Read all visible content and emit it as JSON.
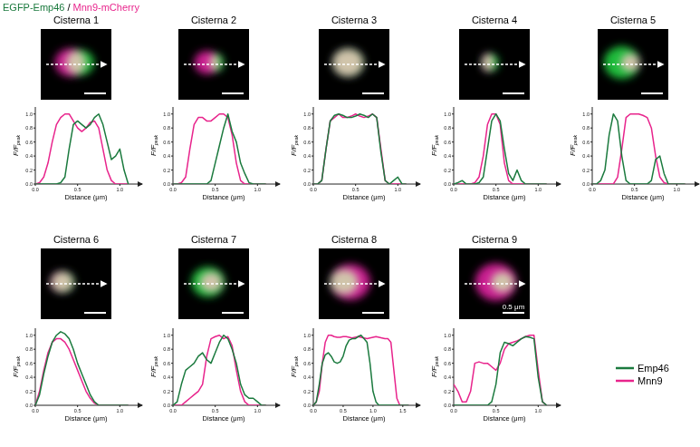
{
  "header": {
    "green": "EGFP-Emp46",
    "separator": "/",
    "magenta": "Mnn9-mCherry"
  },
  "chart_data": [
    {
      "type": "line",
      "title": "Cisterna 1",
      "xlabel": "Distance (μm)",
      "ylabel": "F/F",
      "ylabel_subscript": "peak",
      "x": [
        0,
        0.05,
        0.1,
        0.15,
        0.2,
        0.25,
        0.3,
        0.35,
        0.4,
        0.45,
        0.5,
        0.55,
        0.6,
        0.65,
        0.7,
        0.75,
        0.8,
        0.85,
        0.9,
        0.95,
        1,
        1.05,
        1.1
      ],
      "series": [
        {
          "name": "Emp46",
          "color": "#1b7a3e",
          "values": [
            0,
            0,
            0,
            0,
            0,
            0,
            0.02,
            0.1,
            0.5,
            0.85,
            0.9,
            0.85,
            0.8,
            0.85,
            0.95,
            1,
            0.85,
            0.6,
            0.35,
            0.4,
            0.5,
            0.2,
            0
          ]
        },
        {
          "name": "Mnn9",
          "color": "#e8248c",
          "values": [
            0,
            0.02,
            0.1,
            0.3,
            0.6,
            0.85,
            0.95,
            1,
            1,
            0.9,
            0.8,
            0.75,
            0.8,
            0.88,
            0.9,
            0.8,
            0.5,
            0.2,
            0.05,
            0,
            0,
            0,
            0
          ]
        }
      ],
      "xlim": [
        0,
        1.2
      ],
      "xticks": [
        {
          "value": 0,
          "label": "0.0"
        },
        0.5,
        {
          "value": 1,
          "label": "1.0"
        }
      ],
      "ylim": [
        0,
        1.1
      ],
      "yticks": [
        {
          "value": 0,
          "label": "0.0"
        },
        0.2,
        0.4,
        0.6,
        0.8,
        {
          "value": 1,
          "label": "1.0"
        }
      ]
    },
    {
      "type": "line",
      "title": "Cisterna 2",
      "xlabel": "Distance (μm)",
      "ylabel": "F/F",
      "ylabel_subscript": "peak",
      "x": [
        0,
        0.05,
        0.1,
        0.15,
        0.2,
        0.25,
        0.3,
        0.35,
        0.4,
        0.45,
        0.5,
        0.55,
        0.6,
        0.65,
        0.7,
        0.75,
        0.8,
        0.85,
        0.9,
        0.95,
        1,
        1.05,
        1.1
      ],
      "series": [
        {
          "name": "Emp46",
          "color": "#1b7a3e",
          "values": [
            0,
            0,
            0,
            0,
            0,
            0,
            0,
            0,
            0,
            0.05,
            0.3,
            0.55,
            0.8,
            1,
            0.75,
            0.6,
            0.3,
            0.15,
            0.02,
            0,
            0,
            0,
            0
          ]
        },
        {
          "name": "Mnn9",
          "color": "#e8248c",
          "values": [
            0,
            0,
            0.02,
            0.1,
            0.5,
            0.85,
            0.95,
            0.95,
            0.9,
            0.9,
            0.95,
            1,
            1,
            0.95,
            0.7,
            0.3,
            0.05,
            0,
            0,
            0,
            0,
            0,
            0
          ]
        }
      ],
      "xlim": [
        0,
        1.2
      ],
      "xticks": [
        {
          "value": 0,
          "label": "0.0"
        },
        0.5,
        {
          "value": 1,
          "label": "1.0"
        }
      ],
      "ylim": [
        0,
        1.1
      ],
      "yticks": [
        {
          "value": 0,
          "label": "0.0"
        },
        0.2,
        0.4,
        0.6,
        0.8,
        {
          "value": 1,
          "label": "1.0"
        }
      ]
    },
    {
      "type": "line",
      "title": "Cisterna 3",
      "xlabel": "Distance (μm)",
      "ylabel": "F/F",
      "ylabel_subscript": "peak",
      "x": [
        0,
        0.05,
        0.1,
        0.15,
        0.2,
        0.25,
        0.3,
        0.35,
        0.4,
        0.45,
        0.5,
        0.55,
        0.6,
        0.65,
        0.7,
        0.75,
        0.8,
        0.85,
        0.9,
        0.95,
        1,
        1.05,
        1.1
      ],
      "series": [
        {
          "name": "Emp46",
          "color": "#1b7a3e",
          "values": [
            0,
            0,
            0.05,
            0.5,
            0.9,
            0.98,
            1,
            0.98,
            0.95,
            0.95,
            0.97,
            1,
            0.98,
            0.95,
            1,
            0.95,
            0.45,
            0.05,
            0,
            0.05,
            0.1,
            0,
            0
          ]
        },
        {
          "name": "Mnn9",
          "color": "#e8248c",
          "values": [
            0,
            0,
            0.05,
            0.5,
            0.9,
            0.95,
            1,
            0.95,
            0.95,
            0.97,
            1,
            0.97,
            0.95,
            0.97,
            1,
            0.95,
            0.5,
            0.05,
            0,
            0,
            0,
            0,
            0
          ]
        }
      ],
      "xlim": [
        0,
        1.2
      ],
      "xticks": [
        {
          "value": 0,
          "label": "0.0"
        },
        0.5,
        {
          "value": 1,
          "label": "1.0"
        }
      ],
      "ylim": [
        0,
        1.1
      ],
      "yticks": [
        {
          "value": 0,
          "label": "0.0"
        },
        0.2,
        0.4,
        0.6,
        0.8,
        {
          "value": 1,
          "label": "1.0"
        }
      ]
    },
    {
      "type": "line",
      "title": "Cisterna 4",
      "xlabel": "Distance (μm)",
      "ylabel": "F/F",
      "ylabel_subscript": "peak",
      "x": [
        0,
        0.05,
        0.1,
        0.15,
        0.2,
        0.25,
        0.3,
        0.35,
        0.4,
        0.45,
        0.5,
        0.55,
        0.6,
        0.65,
        0.7,
        0.75,
        0.8,
        0.85,
        0.9,
        0.95,
        1,
        1.05,
        1.1
      ],
      "series": [
        {
          "name": "Emp46",
          "color": "#1b7a3e",
          "values": [
            0,
            0.02,
            0.05,
            0,
            0,
            0,
            0.02,
            0.1,
            0.5,
            0.9,
            1,
            0.9,
            0.5,
            0.15,
            0.05,
            0.2,
            0.05,
            0,
            0,
            0,
            0,
            0,
            0
          ]
        },
        {
          "name": "Mnn9",
          "color": "#e8248c",
          "values": [
            0,
            0,
            0,
            0,
            0,
            0.02,
            0.1,
            0.4,
            0.85,
            1,
            1,
            0.85,
            0.3,
            0.05,
            0,
            0,
            0,
            0,
            0,
            0,
            0,
            0,
            0
          ]
        }
      ],
      "xlim": [
        0,
        1.2
      ],
      "xticks": [
        {
          "value": 0,
          "label": "0.0"
        },
        0.5,
        {
          "value": 1,
          "label": "1.0"
        }
      ],
      "ylim": [
        0,
        1.1
      ],
      "yticks": [
        {
          "value": 0,
          "label": "0.0"
        },
        0.2,
        0.4,
        0.6,
        0.8,
        {
          "value": 1,
          "label": "1.0"
        }
      ]
    },
    {
      "type": "line",
      "title": "Cisterna 5",
      "xlabel": "Distance (μm)",
      "ylabel": "F/F",
      "ylabel_subscript": "peak",
      "x": [
        0,
        0.05,
        0.1,
        0.15,
        0.2,
        0.25,
        0.3,
        0.35,
        0.4,
        0.45,
        0.5,
        0.55,
        0.6,
        0.65,
        0.7,
        0.75,
        0.8,
        0.85,
        0.9,
        0.95,
        1,
        1.05,
        1.1
      ],
      "series": [
        {
          "name": "Emp46",
          "color": "#1b7a3e",
          "values": [
            0,
            0,
            0.05,
            0.2,
            0.7,
            1,
            0.9,
            0.4,
            0.05,
            0,
            0,
            0,
            0,
            0,
            0.05,
            0.35,
            0.4,
            0.15,
            0,
            0,
            0,
            0,
            0
          ]
        },
        {
          "name": "Mnn9",
          "color": "#e8248c",
          "values": [
            0,
            0,
            0,
            0,
            0,
            0,
            0.1,
            0.5,
            0.95,
            1,
            1,
            1,
            0.98,
            0.95,
            0.8,
            0.4,
            0.1,
            0.02,
            0,
            0,
            0,
            0,
            0
          ]
        }
      ],
      "xlim": [
        0,
        1.2
      ],
      "xticks": [
        {
          "value": 0,
          "label": "0.0"
        },
        0.5,
        {
          "value": 1,
          "label": "1.0"
        }
      ],
      "ylim": [
        0,
        1.1
      ],
      "yticks": [
        {
          "value": 0,
          "label": "0.0"
        },
        0.2,
        0.4,
        0.6,
        0.8,
        {
          "value": 1,
          "label": "1.0"
        }
      ]
    },
    {
      "type": "line",
      "title": "Cisterna 6",
      "xlabel": "Distance (μm)",
      "ylabel": "F/F",
      "ylabel_subscript": "peak",
      "x": [
        0,
        0.05,
        0.1,
        0.15,
        0.2,
        0.25,
        0.3,
        0.35,
        0.4,
        0.45,
        0.5,
        0.55,
        0.6,
        0.65,
        0.7,
        0.75,
        0.8,
        0.85,
        0.9,
        0.95,
        1,
        1.05,
        1.1
      ],
      "series": [
        {
          "name": "Emp46",
          "color": "#1b7a3e",
          "values": [
            0,
            0.15,
            0.45,
            0.7,
            0.9,
            1,
            1.05,
            1.02,
            0.95,
            0.8,
            0.6,
            0.45,
            0.3,
            0.15,
            0.05,
            0,
            0,
            0,
            0,
            0,
            0,
            0,
            0
          ]
        },
        {
          "name": "Mnn9",
          "color": "#e8248c",
          "values": [
            0,
            0.2,
            0.5,
            0.75,
            0.9,
            0.95,
            0.95,
            0.9,
            0.8,
            0.65,
            0.5,
            0.35,
            0.2,
            0.1,
            0.03,
            0,
            0,
            0,
            0,
            0,
            0,
            0,
            0
          ]
        }
      ],
      "xlim": [
        0,
        1.2
      ],
      "xticks": [
        {
          "value": 0,
          "label": "0.0"
        },
        0.5,
        {
          "value": 1,
          "label": "1.0"
        }
      ],
      "ylim": [
        0,
        1.1
      ],
      "yticks": [
        {
          "value": 0,
          "label": "0.0"
        },
        0.2,
        0.4,
        0.6,
        0.8,
        {
          "value": 1,
          "label": "1.0"
        }
      ]
    },
    {
      "type": "line",
      "title": "Cisterna 7",
      "xlabel": "Distance (μm)",
      "ylabel": "F/F",
      "ylabel_subscript": "peak",
      "x": [
        0,
        0.05,
        0.1,
        0.15,
        0.2,
        0.25,
        0.3,
        0.35,
        0.4,
        0.45,
        0.5,
        0.55,
        0.6,
        0.65,
        0.7,
        0.75,
        0.8,
        0.85,
        0.9,
        0.95,
        1,
        1.05,
        1.1
      ],
      "series": [
        {
          "name": "Emp46",
          "color": "#1b7a3e",
          "values": [
            0,
            0.05,
            0.3,
            0.5,
            0.55,
            0.6,
            0.7,
            0.75,
            0.65,
            0.6,
            0.75,
            0.9,
            1,
            0.95,
            0.8,
            0.6,
            0.3,
            0.15,
            0.1,
            0.1,
            0.05,
            0,
            0
          ]
        },
        {
          "name": "Mnn9",
          "color": "#e8248c",
          "values": [
            0,
            0,
            0,
            0.05,
            0.1,
            0.15,
            0.2,
            0.3,
            0.7,
            0.95,
            0.98,
            1,
            0.95,
            0.98,
            0.85,
            0.5,
            0.2,
            0.05,
            0,
            0,
            0,
            0,
            0
          ]
        }
      ],
      "xlim": [
        0,
        1.2
      ],
      "xticks": [
        {
          "value": 0,
          "label": "0.0"
        },
        0.5,
        {
          "value": 1,
          "label": "1.0"
        }
      ],
      "ylim": [
        0,
        1.1
      ],
      "yticks": [
        {
          "value": 0,
          "label": "0.0"
        },
        0.2,
        0.4,
        0.6,
        0.8,
        {
          "value": 1,
          "label": "1.0"
        }
      ]
    },
    {
      "type": "line",
      "title": "Cisterna 8",
      "xlabel": "Distance (μm)",
      "ylabel": "F/F",
      "ylabel_subscript": "peak",
      "x": [
        0,
        0.05,
        0.1,
        0.15,
        0.2,
        0.25,
        0.3,
        0.35,
        0.4,
        0.45,
        0.5,
        0.55,
        0.6,
        0.65,
        0.7,
        0.75,
        0.8,
        0.85,
        0.9,
        0.95,
        1,
        1.05,
        1.1,
        1.15,
        1.2,
        1.25,
        1.3,
        1.35,
        1.4,
        1.45,
        1.5,
        1.55,
        1.6
      ],
      "series": [
        {
          "name": "Emp46",
          "color": "#1b7a3e",
          "values": [
            0,
            0.05,
            0.3,
            0.6,
            0.72,
            0.75,
            0.7,
            0.62,
            0.6,
            0.62,
            0.7,
            0.85,
            0.93,
            0.95,
            0.95,
            0.98,
            1,
            0.95,
            0.9,
            0.6,
            0.2,
            0.05,
            0,
            0,
            0,
            0,
            0,
            0,
            0,
            0,
            0,
            0,
            0
          ]
        },
        {
          "name": "Mnn9",
          "color": "#e8248c",
          "values": [
            0,
            0.05,
            0.2,
            0.6,
            0.9,
            1,
            1,
            0.98,
            0.97,
            0.97,
            0.98,
            0.98,
            0.97,
            0.96,
            0.97,
            0.98,
            0.97,
            0.96,
            0.95,
            0.96,
            0.97,
            0.98,
            0.97,
            0.96,
            0.95,
            0.95,
            0.9,
            0.5,
            0.1,
            0,
            0,
            0,
            0
          ]
        }
      ],
      "xlim": [
        0,
        1.7
      ],
      "xticks": [
        {
          "value": 0,
          "label": "0.0"
        },
        0.5,
        {
          "value": 1,
          "label": "1.0"
        },
        1.5
      ],
      "ylim": [
        0,
        1.1
      ],
      "yticks": [
        {
          "value": 0,
          "label": "0.0"
        },
        0.2,
        0.4,
        0.6,
        0.8,
        {
          "value": 1,
          "label": "1.0"
        }
      ]
    },
    {
      "type": "line",
      "title": "Cisterna 9",
      "xlabel": "Distance (μm)",
      "ylabel": "F/F",
      "ylabel_subscript": "peak",
      "scale_bar_label": "0.5 μm",
      "x": [
        0,
        0.05,
        0.1,
        0.15,
        0.2,
        0.25,
        0.3,
        0.35,
        0.4,
        0.45,
        0.5,
        0.55,
        0.6,
        0.65,
        0.7,
        0.75,
        0.8,
        0.85,
        0.9,
        0.95,
        1,
        1.05,
        1.1
      ],
      "series": [
        {
          "name": "Emp46",
          "color": "#1b7a3e",
          "values": [
            0,
            0,
            0,
            0,
            0,
            0,
            0,
            0,
            0,
            0.05,
            0.3,
            0.75,
            0.9,
            0.88,
            0.85,
            0.9,
            0.95,
            0.98,
            0.97,
            0.95,
            0.4,
            0.05,
            0
          ]
        },
        {
          "name": "Mnn9",
          "color": "#e8248c",
          "values": [
            0.3,
            0.2,
            0.05,
            0.05,
            0.2,
            0.6,
            0.62,
            0.6,
            0.6,
            0.55,
            0.5,
            0.6,
            0.8,
            0.88,
            0.9,
            0.92,
            0.95,
            0.98,
            1,
            1,
            0.5,
            0.05,
            0
          ]
        }
      ],
      "xlim": [
        0,
        1.2
      ],
      "xticks": [
        {
          "value": 0,
          "label": "0.0"
        },
        0.5,
        {
          "value": 1,
          "label": "1.0"
        }
      ],
      "ylim": [
        0,
        1.1
      ],
      "yticks": [
        {
          "value": 0,
          "label": "0.0"
        },
        0.2,
        0.4,
        0.6,
        0.8,
        {
          "value": 1,
          "label": "1.0"
        }
      ]
    }
  ]
}
